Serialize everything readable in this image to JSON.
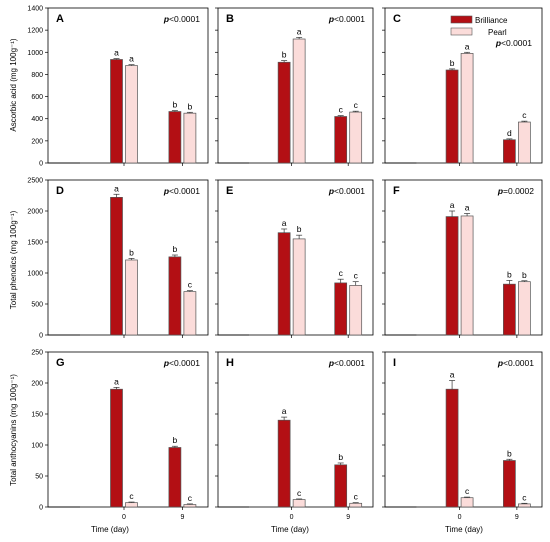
{
  "colors": {
    "brilliance": "#b30f14",
    "pearl": "#fbdcda",
    "edge": "#555555"
  },
  "legend": [
    {
      "name": "Brilliance",
      "color": "#b30f14"
    },
    {
      "name": "Pearl",
      "color": "#fbdcda"
    }
  ],
  "chart_data": [
    {
      "type": "bar",
      "panel": "A",
      "row": 0,
      "col": 0,
      "pvalue": "p<0.0001",
      "categories": [
        "0",
        "9"
      ],
      "ylim": [
        0,
        1400
      ],
      "yticks": [
        0,
        200,
        400,
        600,
        800,
        1000,
        1200,
        1400
      ],
      "series": [
        {
          "name": "Brilliance",
          "values": [
            935,
            465
          ],
          "errors": [
            8,
            8
          ],
          "letters": [
            "a",
            "b"
          ]
        },
        {
          "name": "Pearl",
          "values": [
            880,
            450
          ],
          "errors": [
            8,
            8
          ],
          "letters": [
            "a",
            "b"
          ]
        }
      ]
    },
    {
      "type": "bar",
      "panel": "B",
      "row": 0,
      "col": 1,
      "pvalue": "p<0.0001",
      "categories": [
        "0",
        "9"
      ],
      "ylim": [
        0,
        1400
      ],
      "yticks": [
        0,
        200,
        400,
        600,
        800,
        1000,
        1200,
        1400
      ],
      "series": [
        {
          "name": "Brilliance",
          "values": [
            910,
            420
          ],
          "errors": [
            15,
            8
          ],
          "letters": [
            "b",
            "c"
          ]
        },
        {
          "name": "Pearl",
          "values": [
            1120,
            460
          ],
          "errors": [
            15,
            8
          ],
          "letters": [
            "a",
            "c"
          ]
        }
      ]
    },
    {
      "type": "bar",
      "panel": "C",
      "row": 0,
      "col": 2,
      "pvalue": "p<0.0001",
      "categories": [
        "0",
        "9"
      ],
      "ylim": [
        0,
        1400
      ],
      "yticks": [
        0,
        200,
        400,
        600,
        800,
        1000,
        1200,
        1400
      ],
      "series": [
        {
          "name": "Brilliance",
          "values": [
            840,
            210
          ],
          "errors": [
            10,
            8
          ],
          "letters": [
            "b",
            "d"
          ]
        },
        {
          "name": "Pearl",
          "values": [
            990,
            370
          ],
          "errors": [
            10,
            8
          ],
          "letters": [
            "a",
            "c"
          ]
        }
      ]
    },
    {
      "type": "bar",
      "panel": "D",
      "row": 1,
      "col": 0,
      "pvalue": "p<0.0001",
      "categories": [
        "0",
        "9"
      ],
      "ylim": [
        0,
        2500
      ],
      "yticks": [
        0,
        500,
        1000,
        1500,
        2000,
        2500
      ],
      "series": [
        {
          "name": "Brilliance",
          "values": [
            2220,
            1260
          ],
          "errors": [
            50,
            30
          ],
          "letters": [
            "a",
            "b"
          ]
        },
        {
          "name": "Pearl",
          "values": [
            1210,
            700
          ],
          "errors": [
            25,
            15
          ],
          "letters": [
            "b",
            "c"
          ]
        }
      ]
    },
    {
      "type": "bar",
      "panel": "E",
      "row": 1,
      "col": 1,
      "pvalue": "p<0.0001",
      "categories": [
        "0",
        "9"
      ],
      "ylim": [
        0,
        2500
      ],
      "yticks": [
        0,
        500,
        1000,
        1500,
        2000,
        2500
      ],
      "series": [
        {
          "name": "Brilliance",
          "values": [
            1650,
            840
          ],
          "errors": [
            60,
            60
          ],
          "letters": [
            "a",
            "c"
          ]
        },
        {
          "name": "Pearl",
          "values": [
            1550,
            800
          ],
          "errors": [
            60,
            60
          ],
          "letters": [
            "b",
            "c"
          ]
        }
      ]
    },
    {
      "type": "bar",
      "panel": "F",
      "row": 1,
      "col": 2,
      "pvalue": "p=0.0002",
      "categories": [
        "0",
        "9"
      ],
      "ylim": [
        0,
        2500
      ],
      "yticks": [
        0,
        500,
        1000,
        1500,
        2000,
        2500
      ],
      "series": [
        {
          "name": "Brilliance",
          "values": [
            1910,
            820
          ],
          "errors": [
            90,
            60
          ],
          "letters": [
            "a",
            "b"
          ]
        },
        {
          "name": "Pearl",
          "values": [
            1920,
            860
          ],
          "errors": [
            40,
            15
          ],
          "letters": [
            "a",
            "b"
          ]
        }
      ]
    },
    {
      "type": "bar",
      "panel": "G",
      "row": 2,
      "col": 0,
      "pvalue": "p<0.0001",
      "categories": [
        "0",
        "9"
      ],
      "ylim": [
        0,
        250
      ],
      "yticks": [
        0,
        50,
        100,
        150,
        200,
        250
      ],
      "series": [
        {
          "name": "Brilliance",
          "values": [
            190,
            96
          ],
          "errors": [
            3,
            2
          ],
          "letters": [
            "a",
            "b"
          ]
        },
        {
          "name": "Pearl",
          "values": [
            7,
            4
          ],
          "errors": [
            1,
            1
          ],
          "letters": [
            "c",
            "c"
          ]
        }
      ]
    },
    {
      "type": "bar",
      "panel": "H",
      "row": 2,
      "col": 1,
      "pvalue": "p<0.0001",
      "categories": [
        "0",
        "9"
      ],
      "ylim": [
        0,
        250
      ],
      "yticks": [
        0,
        50,
        100,
        150,
        200,
        250
      ],
      "series": [
        {
          "name": "Brilliance",
          "values": [
            140,
            68
          ],
          "errors": [
            5,
            3
          ],
          "letters": [
            "a",
            "b"
          ]
        },
        {
          "name": "Pearl",
          "values": [
            12,
            6
          ],
          "errors": [
            1,
            1
          ],
          "letters": [
            "c",
            "c"
          ]
        }
      ]
    },
    {
      "type": "bar",
      "panel": "I",
      "row": 2,
      "col": 2,
      "pvalue": "p<0.0001",
      "categories": [
        "0",
        "9"
      ],
      "ylim": [
        0,
        250
      ],
      "yticks": [
        0,
        50,
        100,
        150,
        200,
        250
      ],
      "series": [
        {
          "name": "Brilliance",
          "values": [
            190,
            75
          ],
          "errors": [
            14,
            2
          ],
          "letters": [
            "a",
            "b"
          ]
        },
        {
          "name": "Pearl",
          "values": [
            15,
            5
          ],
          "errors": [
            1,
            1
          ],
          "letters": [
            "c",
            "c"
          ]
        }
      ]
    }
  ],
  "axes": {
    "ylabels": [
      "Ascorbic acid (mg 100g⁻¹)",
      "Total phenolics (mg 100g⁻¹)",
      "Total anthocyanins (mg 100g⁻¹)"
    ],
    "xlabel": "Time (day)"
  }
}
